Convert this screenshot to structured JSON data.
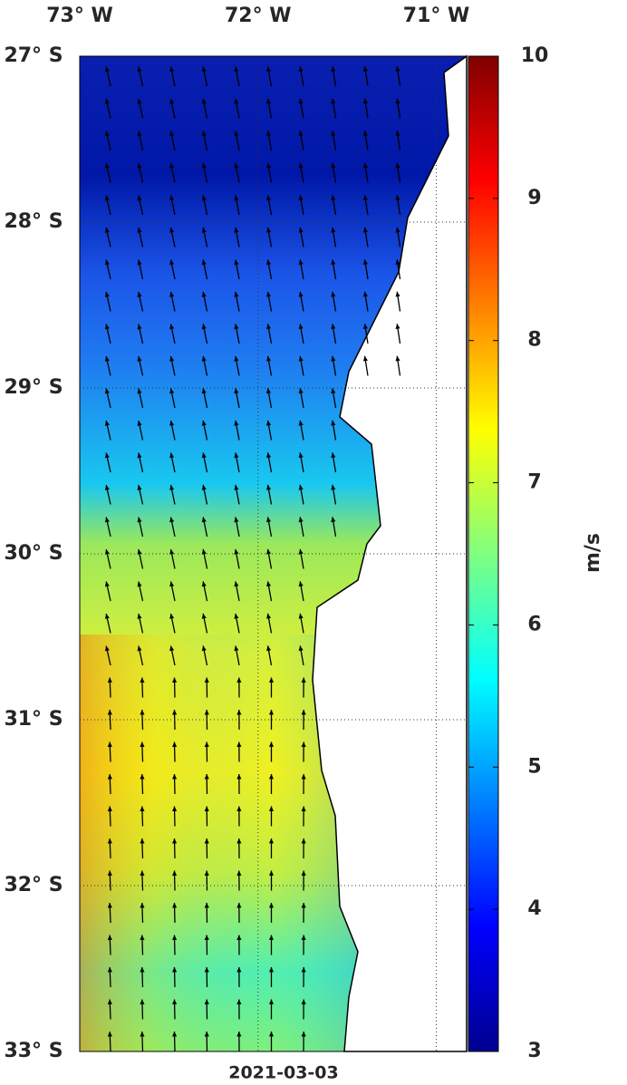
{
  "map": {
    "lon_range": [
      -73,
      -70.83
    ],
    "lat_range": [
      -33,
      -27
    ],
    "lon_ticks": [
      {
        "value": -73,
        "label": "73° W"
      },
      {
        "value": -72,
        "label": "72° W"
      },
      {
        "value": -71,
        "label": "71° W"
      }
    ],
    "lat_ticks": [
      {
        "value": -27,
        "label": "27° S"
      },
      {
        "value": -28,
        "label": "28° S"
      },
      {
        "value": -29,
        "label": "29° S"
      },
      {
        "value": -30,
        "label": "30° S"
      },
      {
        "value": -31,
        "label": "31° S"
      },
      {
        "value": -32,
        "label": "32° S"
      },
      {
        "value": -33,
        "label": "33° S"
      }
    ],
    "colorbar": {
      "range": [
        3,
        10
      ],
      "ticks": [
        3,
        4,
        5,
        6,
        7,
        8,
        9,
        10
      ],
      "label": "m/s"
    },
    "date": "2021-03-03"
  }
}
